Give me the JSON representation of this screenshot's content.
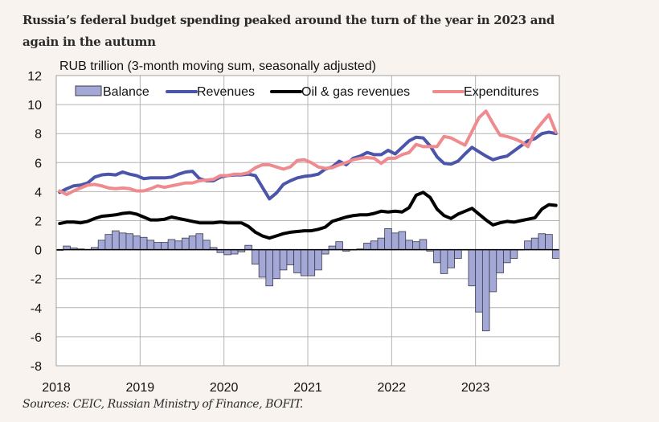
{
  "title": "Russia’s federal budget spending peaked around the turn of the year in 2023 and again in the autumn",
  "source": "Sources: CEIC, Russian Ministry of Finance, BOFIT.",
  "chart_data": {
    "type": "bar+line",
    "title": "RUB trillion (3-month moving sum, seasonally adjusted)",
    "xlabel": "",
    "ylabel": "RUB trillion",
    "ylim": [
      -8,
      12
    ],
    "yticks": [
      12,
      10,
      8,
      6,
      4,
      2,
      0,
      -2,
      -4,
      -6,
      -8
    ],
    "xticks": [
      "2018",
      "2019",
      "2020",
      "2021",
      "2022",
      "2023"
    ],
    "x_start": "2018-01",
    "x_end": "2023-12",
    "frequency": "monthly",
    "grid": true,
    "legend_position": "top",
    "colors": {
      "balance_fill": "#a3a8d6",
      "balance_stroke": "#3a3a4a",
      "revenues": "#4b55a9",
      "oil_gas": "#000000",
      "expenditures": "#ef8b8f"
    },
    "series": [
      {
        "name": "Balance",
        "type": "bar",
        "values": [
          -0.05,
          0.25,
          0.12,
          0.05,
          0.02,
          0.15,
          0.65,
          1.05,
          1.3,
          1.15,
          1.1,
          0.95,
          0.85,
          0.65,
          0.5,
          0.5,
          0.7,
          0.6,
          0.8,
          0.95,
          1.1,
          0.65,
          0.15,
          -0.2,
          -0.35,
          -0.3,
          -0.15,
          0.3,
          -1.0,
          -1.9,
          -2.5,
          -2.0,
          -1.4,
          -1.05,
          -1.6,
          -1.8,
          -1.8,
          -1.4,
          -0.3,
          0.25,
          0.55,
          -0.1,
          0.0,
          0.05,
          0.45,
          0.6,
          0.8,
          1.45,
          1.15,
          1.25,
          0.65,
          0.55,
          0.7,
          -0.1,
          -0.9,
          -1.65,
          -1.25,
          -0.6,
          0.0,
          -2.5,
          -4.3,
          -5.6,
          -2.9,
          -1.6,
          -0.9,
          -0.6,
          0.0,
          0.6,
          0.8,
          1.1,
          1.05,
          -0.6
        ]
      },
      {
        "name": "Revenues",
        "type": "line",
        "values": [
          3.95,
          4.2,
          4.4,
          4.45,
          4.6,
          5.0,
          5.15,
          5.2,
          5.15,
          5.35,
          5.2,
          5.1,
          4.9,
          4.95,
          4.95,
          4.95,
          5.0,
          5.2,
          5.35,
          5.4,
          4.9,
          4.75,
          4.75,
          5.0,
          5.1,
          5.15,
          5.15,
          5.2,
          5.1,
          4.3,
          3.5,
          3.9,
          4.5,
          4.75,
          4.95,
          5.05,
          5.1,
          5.2,
          5.55,
          5.7,
          6.1,
          5.85,
          6.3,
          6.45,
          6.7,
          6.55,
          6.55,
          6.85,
          6.6,
          7.05,
          7.5,
          7.75,
          7.7,
          7.15,
          6.4,
          5.95,
          5.9,
          6.1,
          6.6,
          7.05,
          6.75,
          6.45,
          6.2,
          6.35,
          6.45,
          6.8,
          7.15,
          7.5,
          7.65,
          8.0,
          8.1,
          8.0
        ]
      },
      {
        "name": "Oil & gas revenues",
        "type": "line",
        "values": [
          1.8,
          1.9,
          1.9,
          1.85,
          1.95,
          2.15,
          2.3,
          2.35,
          2.4,
          2.5,
          2.55,
          2.45,
          2.25,
          2.05,
          2.05,
          2.1,
          2.25,
          2.15,
          2.05,
          1.95,
          1.85,
          1.85,
          1.85,
          1.9,
          1.85,
          1.85,
          1.85,
          1.6,
          1.2,
          0.95,
          0.8,
          0.95,
          1.1,
          1.2,
          1.25,
          1.3,
          1.3,
          1.4,
          1.55,
          1.95,
          2.1,
          2.25,
          2.35,
          2.4,
          2.4,
          2.5,
          2.65,
          2.6,
          2.65,
          2.6,
          2.9,
          3.75,
          3.95,
          3.6,
          2.8,
          2.35,
          2.15,
          2.45,
          2.65,
          2.85,
          2.45,
          2.05,
          1.7,
          1.85,
          1.95,
          1.9,
          2.0,
          2.1,
          2.2,
          2.8,
          3.1,
          3.05
        ]
      },
      {
        "name": "Expenditures",
        "type": "line",
        "values": [
          4.05,
          3.8,
          4.05,
          4.25,
          4.45,
          4.5,
          4.4,
          4.25,
          4.2,
          4.25,
          4.2,
          4.05,
          4.05,
          4.2,
          4.4,
          4.3,
          4.4,
          4.5,
          4.6,
          4.6,
          4.75,
          4.8,
          4.85,
          5.1,
          5.1,
          5.2,
          5.2,
          5.3,
          5.65,
          5.85,
          5.85,
          5.7,
          5.55,
          5.7,
          6.15,
          6.2,
          6.0,
          5.7,
          5.6,
          5.65,
          5.85,
          6.0,
          6.2,
          6.3,
          6.35,
          6.3,
          5.95,
          6.3,
          6.3,
          6.55,
          6.7,
          7.25,
          7.1,
          7.1,
          7.1,
          7.8,
          7.7,
          7.45,
          7.2,
          8.15,
          9.1,
          9.55,
          8.7,
          7.9,
          7.8,
          7.65,
          7.45,
          7.1,
          8.15,
          8.75,
          9.3,
          8.1
        ]
      }
    ]
  }
}
